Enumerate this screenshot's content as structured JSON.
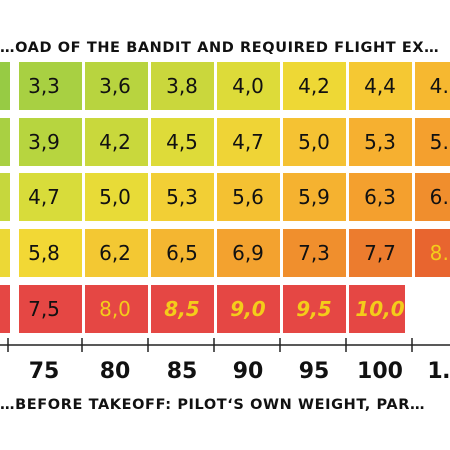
{
  "chart_data": {
    "type": "heatmap",
    "title": "…OAD OF THE BANDIT AND REQUIRED FLIGHT EX…",
    "xlabel": "…BEFORE TAKEOFF: PILOT‘S OWN WEIGHT, PAR…",
    "ylabel": "",
    "x_ticks": [
      "75",
      "80",
      "85",
      "90",
      "95",
      "100",
      "1…"
    ],
    "rows": [
      [
        "3,3",
        "3,6",
        "3,8",
        "4,0",
        "4,2",
        "4,4",
        "4…"
      ],
      [
        "3,9",
        "4,2",
        "4,5",
        "4,7",
        "5,0",
        "5,3",
        "5…"
      ],
      [
        "4,7",
        "5,0",
        "5,3",
        "5,6",
        "5,9",
        "6,3",
        "6…"
      ],
      [
        "5,8",
        "6,2",
        "6,5",
        "6,9",
        "7,3",
        "7,7",
        "8…"
      ],
      [
        "7,5",
        "8,0",
        "8,5",
        "9,0",
        "9,5",
        "10,0",
        ""
      ]
    ],
    "cell_colors": [
      [
        "#a8d042",
        "#b8d43f",
        "#cad73c",
        "#dddb39",
        "#eed835",
        "#f5c833",
        "#f6b830"
      ],
      [
        "#b7d53f",
        "#c9d83c",
        "#dedb39",
        "#efd436",
        "#f5c233",
        "#f6b030",
        "#f4a02e"
      ],
      [
        "#d8dc3a",
        "#e8db37",
        "#f2cf35",
        "#f4c132",
        "#f5b230",
        "#f4a02e",
        "#f08e2d"
      ],
      [
        "#f2d835",
        "#f3c833",
        "#f4b631",
        "#f3a22f",
        "#f08f2d",
        "#ec7c2e",
        "#e8652f"
      ],
      [
        "#e54744",
        "#e54744",
        "#e54744",
        "#e54744",
        "#e54744",
        "#e54744",
        "#ffffff"
      ]
    ],
    "highlight_text_color": "#f4cc1a",
    "normal_text_color": "#111111",
    "grid": false,
    "colors": {
      "green": "#84c241",
      "yellow": "#f5d835",
      "orange": "#f08e2d",
      "red": "#e54744"
    }
  }
}
